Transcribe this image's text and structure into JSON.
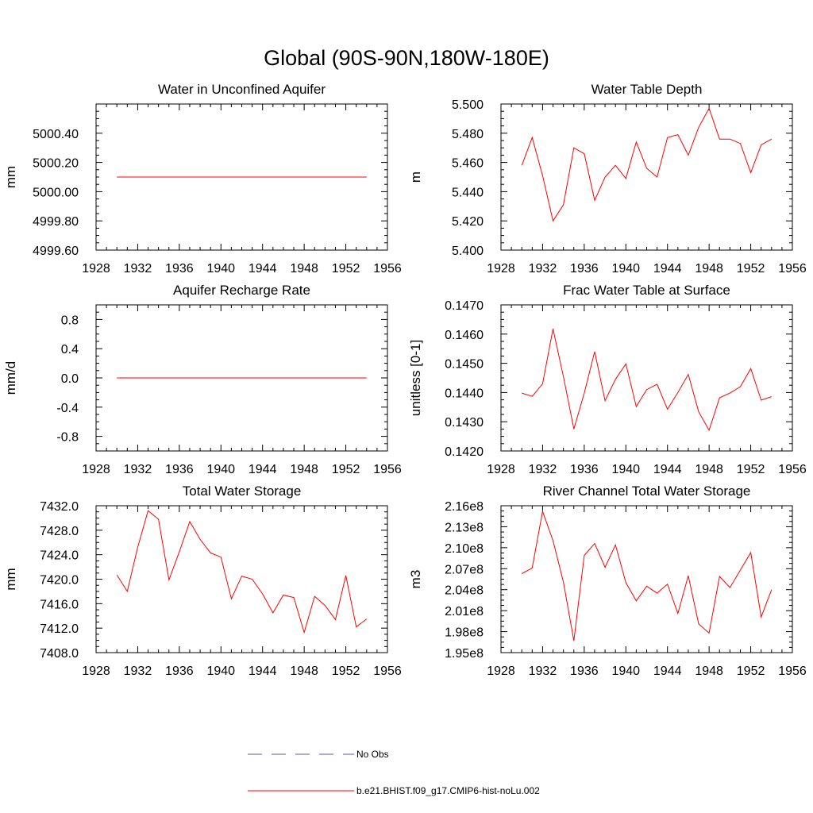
{
  "figure": {
    "title": "Global (90S-90N,180W-180E)"
  },
  "legend": [
    {
      "label": "No Obs",
      "color": "#5a5aa8",
      "dashed": true
    },
    {
      "label": "b.e21.BHIST.f09_g17.CMIP6-hist-noLu.002",
      "color": "#ff0000",
      "dashed": false
    }
  ],
  "chart_data": [
    {
      "type": "line",
      "title": "Water in Unconfined Aquifer",
      "ylabel": "mm",
      "xlim": [
        1928,
        1956
      ],
      "ylim": [
        4999.6,
        5000.6
      ],
      "xticks": [
        "1928",
        "1932",
        "1936",
        "1940",
        "1944",
        "1948",
        "1952",
        "1956"
      ],
      "yticks": [
        "4999.60",
        "4999.80",
        "5000.00",
        "5000.20",
        "5000.40"
      ],
      "series": [
        {
          "color": "#ff0000",
          "x": [
            1930,
            1954
          ],
          "values": [
            5000.1,
            5000.1
          ]
        }
      ]
    },
    {
      "type": "line",
      "title": "Water Table Depth",
      "ylabel": "m",
      "xlim": [
        1928,
        1956
      ],
      "ylim": [
        5.4,
        5.5
      ],
      "xticks": [
        "1928",
        "1932",
        "1936",
        "1940",
        "1944",
        "1948",
        "1952",
        "1956"
      ],
      "yticks": [
        "5.400",
        "5.420",
        "5.440",
        "5.460",
        "5.480",
        "5.500"
      ],
      "series": [
        {
          "color": "#ff0000",
          "x": [
            1930,
            1931,
            1932,
            1933,
            1934,
            1935,
            1936,
            1937,
            1938,
            1939,
            1940,
            1941,
            1942,
            1943,
            1944,
            1945,
            1946,
            1947,
            1948,
            1949,
            1950,
            1951,
            1952,
            1953,
            1954
          ],
          "values": [
            5.458,
            5.477,
            5.451,
            5.42,
            5.431,
            5.47,
            5.466,
            5.434,
            5.45,
            5.458,
            5.449,
            5.474,
            5.456,
            5.45,
            5.477,
            5.479,
            5.465,
            5.484,
            5.497,
            5.476,
            5.476,
            5.473,
            5.453,
            5.472,
            5.476
          ]
        }
      ]
    },
    {
      "type": "line",
      "title": "Aquifer Recharge Rate",
      "ylabel": "mm/d",
      "xlim": [
        1928,
        1956
      ],
      "ylim": [
        -1.0,
        1.0
      ],
      "xticks": [
        "1928",
        "1932",
        "1936",
        "1940",
        "1944",
        "1948",
        "1952",
        "1956"
      ],
      "yticks": [
        "-0.8",
        "-0.4",
        "0.0",
        "0.4",
        "0.8"
      ],
      "series": [
        {
          "color": "#ff0000",
          "x": [
            1930,
            1954
          ],
          "values": [
            0.0,
            0.0
          ]
        }
      ]
    },
    {
      "type": "line",
      "title": "Frac Water Table at Surface",
      "ylabel": "unitless [0-1]",
      "xlim": [
        1928,
        1956
      ],
      "ylim": [
        0.142,
        0.147
      ],
      "xticks": [
        "1928",
        "1932",
        "1936",
        "1940",
        "1944",
        "1948",
        "1952",
        "1956"
      ],
      "yticks": [
        "0.1420",
        "0.1430",
        "0.1440",
        "0.1450",
        "0.1460",
        "0.1470"
      ],
      "series": [
        {
          "color": "#ff0000",
          "x": [
            1930,
            1931,
            1932,
            1933,
            1934,
            1935,
            1936,
            1937,
            1938,
            1939,
            1940,
            1941,
            1942,
            1943,
            1944,
            1945,
            1946,
            1947,
            1948,
            1949,
            1950,
            1951,
            1952,
            1953,
            1954
          ],
          "values": [
            0.14398,
            0.14387,
            0.1443,
            0.14618,
            0.14455,
            0.14275,
            0.14398,
            0.1454,
            0.14372,
            0.14445,
            0.14498,
            0.14352,
            0.1441,
            0.14428,
            0.14343,
            0.144,
            0.14462,
            0.14334,
            0.14271,
            0.14382,
            0.14398,
            0.1442,
            0.14482,
            0.14374,
            0.14386
          ]
        }
      ]
    },
    {
      "type": "line",
      "title": "Total Water Storage",
      "ylabel": "mm",
      "xlim": [
        1928,
        1956
      ],
      "ylim": [
        7408.0,
        7432.0
      ],
      "xticks": [
        "1928",
        "1932",
        "1936",
        "1940",
        "1944",
        "1948",
        "1952",
        "1956"
      ],
      "yticks": [
        "7408.0",
        "7412.0",
        "7416.0",
        "7420.0",
        "7424.0",
        "7428.0",
        "7432.0"
      ],
      "series": [
        {
          "color": "#ff0000",
          "x": [
            1930,
            1931,
            1932,
            1933,
            1934,
            1935,
            1936,
            1937,
            1938,
            1939,
            1940,
            1941,
            1942,
            1943,
            1944,
            1945,
            1946,
            1947,
            1948,
            1949,
            1950,
            1951,
            1952,
            1953,
            1954
          ],
          "values": [
            7420.7,
            7418.0,
            7425.2,
            7431.2,
            7429.8,
            7419.9,
            7424.5,
            7429.4,
            7426.5,
            7424.3,
            7423.6,
            7416.8,
            7420.5,
            7420.0,
            7417.6,
            7414.5,
            7417.4,
            7417.0,
            7411.3,
            7417.2,
            7415.7,
            7413.4,
            7420.6,
            7412.2,
            7413.5
          ]
        }
      ]
    },
    {
      "type": "line",
      "title": "River Channel Total Water Storage",
      "ylabel": "m3",
      "xlim": [
        1928,
        1956
      ],
      "ylim": [
        195000000,
        216000000
      ],
      "xticks": [
        "1928",
        "1932",
        "1936",
        "1940",
        "1944",
        "1948",
        "1952",
        "1956"
      ],
      "yticks": [
        "1.95e8",
        "1.98e8",
        "2.01e8",
        "2.04e8",
        "2.07e8",
        "2.10e8",
        "2.13e8",
        "2.16e8"
      ],
      "series": [
        {
          "color": "#ff0000",
          "x": [
            1930,
            1931,
            1932,
            1933,
            1934,
            1935,
            1936,
            1937,
            1938,
            1939,
            1940,
            1941,
            1942,
            1943,
            1944,
            1945,
            1946,
            1947,
            1948,
            1949,
            1950,
            1951,
            1952,
            1953,
            1954
          ],
          "values": [
            206300000,
            207100000,
            215200000,
            211000000,
            205100000,
            196700000,
            208900000,
            210600000,
            207200000,
            210400000,
            205000000,
            202400000,
            204500000,
            203500000,
            204800000,
            200600000,
            206000000,
            199100000,
            197800000,
            205900000,
            204300000,
            206800000,
            209300000,
            200100000,
            204000000
          ]
        }
      ]
    }
  ]
}
